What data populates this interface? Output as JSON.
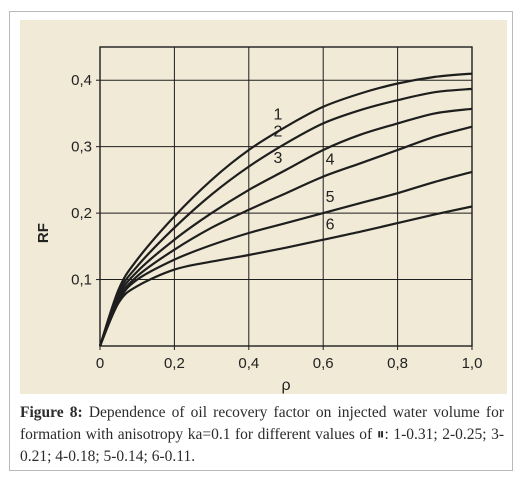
{
  "chart_data": {
    "type": "line",
    "xlabel": "ρ",
    "ylabel": "RF",
    "xlim": [
      0,
      1.0
    ],
    "ylim": [
      0,
      0.45
    ],
    "x_ticks": [
      "0",
      "0,2",
      "0,4",
      "0,6",
      "0,8",
      "1,0"
    ],
    "y_ticks": [
      "0,1",
      "0,2",
      "0,3",
      "0,4"
    ],
    "x_tick_values": [
      0,
      0.2,
      0.4,
      0.6,
      0.8,
      1.0
    ],
    "y_tick_values": [
      0.1,
      0.2,
      0.3,
      0.4
    ],
    "grid": true,
    "series": [
      {
        "name": "1",
        "x": [
          0,
          0.05,
          0.1,
          0.2,
          0.3,
          0.4,
          0.5,
          0.6,
          0.7,
          0.8,
          0.9,
          1.0
        ],
        "y": [
          0,
          0.085,
          0.13,
          0.195,
          0.25,
          0.295,
          0.33,
          0.36,
          0.38,
          0.395,
          0.405,
          0.41
        ]
      },
      {
        "name": "2",
        "x": [
          0,
          0.05,
          0.1,
          0.2,
          0.3,
          0.4,
          0.5,
          0.6,
          0.7,
          0.8,
          0.9,
          1.0
        ],
        "y": [
          0,
          0.08,
          0.12,
          0.178,
          0.228,
          0.27,
          0.305,
          0.335,
          0.355,
          0.37,
          0.382,
          0.387
        ]
      },
      {
        "name": "3",
        "x": [
          0,
          0.05,
          0.1,
          0.2,
          0.3,
          0.4,
          0.5,
          0.6,
          0.7,
          0.8,
          0.9,
          1.0
        ],
        "y": [
          0,
          0.075,
          0.112,
          0.16,
          0.2,
          0.235,
          0.265,
          0.295,
          0.318,
          0.335,
          0.35,
          0.357
        ]
      },
      {
        "name": "4",
        "x": [
          0,
          0.05,
          0.1,
          0.2,
          0.3,
          0.4,
          0.5,
          0.6,
          0.7,
          0.8,
          0.9,
          1.0
        ],
        "y": [
          0,
          0.07,
          0.105,
          0.145,
          0.178,
          0.205,
          0.23,
          0.255,
          0.275,
          0.295,
          0.315,
          0.33
        ]
      },
      {
        "name": "5",
        "x": [
          0,
          0.05,
          0.1,
          0.2,
          0.3,
          0.4,
          0.5,
          0.6,
          0.7,
          0.8,
          0.9,
          1.0
        ],
        "y": [
          0,
          0.068,
          0.1,
          0.13,
          0.152,
          0.17,
          0.185,
          0.2,
          0.215,
          0.23,
          0.247,
          0.262
        ]
      },
      {
        "name": "6",
        "x": [
          0,
          0.05,
          0.1,
          0.2,
          0.3,
          0.4,
          0.5,
          0.6,
          0.7,
          0.8,
          0.9,
          1.0
        ],
        "y": [
          0,
          0.065,
          0.09,
          0.115,
          0.127,
          0.137,
          0.148,
          0.16,
          0.172,
          0.185,
          0.198,
          0.21
        ]
      }
    ]
  },
  "caption": {
    "figure_label": "Figure 8:",
    "text": "Dependence of oil recovery factor on injected water volume for formation with anisotropy ka=0.1 for different values of ⏸: 1-0.31; 2-0.25; 3-0.21; 4-0.18; 5-0.14; 6-0.11."
  },
  "colors": {
    "panel_background": "#f0ead6",
    "curve": "#1e1e1e",
    "grid": "#1e1e1e"
  }
}
